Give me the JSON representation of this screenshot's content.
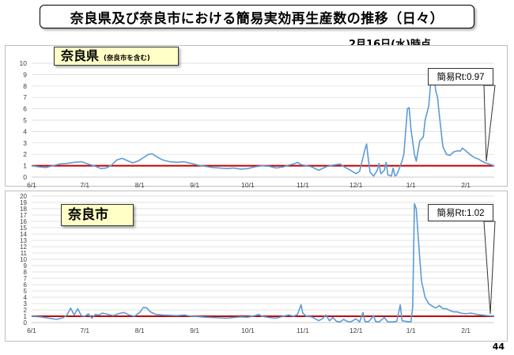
{
  "title": "奈良県及び奈良市における簡易実効再生産数の推移（日々）",
  "as_of": "2月16日(水)時点",
  "page_number": "44",
  "colors": {
    "line": "#5b9bd5",
    "threshold": "#c00000",
    "legend_bg": "#ffffc6",
    "grid": "#d9d9d9"
  },
  "chart_data": [
    {
      "type": "line",
      "legend": {
        "name": "奈良県",
        "note": "(奈良市を含む)"
      },
      "callout": "簡易Rt:0.97",
      "x_start": "6/1",
      "x_tick_labels": [
        "6/1",
        "7/1",
        "8/1",
        "9/1",
        "10/1",
        "11/1",
        "12/1",
        "1/1",
        "2/1"
      ],
      "x_tick_days": [
        0,
        30,
        61,
        92,
        122,
        153,
        183,
        214,
        245
      ],
      "x_max_day": 261,
      "ylim": [
        0,
        10
      ],
      "y_ticks": [
        0,
        1,
        2,
        3,
        4,
        5,
        6,
        7,
        8,
        9,
        10
      ],
      "threshold": 1,
      "points": [
        [
          0,
          1.0
        ],
        [
          4,
          0.9
        ],
        [
          8,
          0.85
        ],
        [
          12,
          1.0
        ],
        [
          16,
          1.15
        ],
        [
          20,
          1.2
        ],
        [
          24,
          1.3
        ],
        [
          28,
          1.35
        ],
        [
          30,
          1.25
        ],
        [
          33,
          1.1
        ],
        [
          36,
          0.95
        ],
        [
          39,
          0.75
        ],
        [
          42,
          0.8
        ],
        [
          45,
          1.05
        ],
        [
          48,
          1.5
        ],
        [
          51,
          1.65
        ],
        [
          54,
          1.45
        ],
        [
          57,
          1.25
        ],
        [
          60,
          1.4
        ],
        [
          63,
          1.7
        ],
        [
          66,
          2.0
        ],
        [
          68,
          2.05
        ],
        [
          71,
          1.75
        ],
        [
          74,
          1.5
        ],
        [
          78,
          1.35
        ],
        [
          82,
          1.3
        ],
        [
          86,
          1.35
        ],
        [
          90,
          1.2
        ],
        [
          94,
          1.05
        ],
        [
          98,
          0.95
        ],
        [
          102,
          0.85
        ],
        [
          106,
          0.8
        ],
        [
          110,
          0.75
        ],
        [
          114,
          0.8
        ],
        [
          118,
          0.7
        ],
        [
          122,
          0.75
        ],
        [
          126,
          0.9
        ],
        [
          130,
          1.0
        ],
        [
          134,
          0.95
        ],
        [
          138,
          0.8
        ],
        [
          142,
          0.9
        ],
        [
          145,
          1.05
        ],
        [
          148,
          1.15
        ],
        [
          150,
          1.3
        ],
        [
          152,
          1.1
        ],
        [
          155,
          1.0
        ],
        [
          158,
          0.9
        ],
        [
          162,
          0.6
        ],
        [
          166,
          0.9
        ],
        [
          170,
          1.05
        ],
        [
          174,
          1.15
        ],
        [
          177,
          0.85
        ],
        [
          180,
          0.6
        ],
        [
          183,
          0.3
        ],
        [
          185,
          0.5
        ],
        [
          186,
          1.1
        ],
        [
          188,
          2.4
        ],
        [
          189,
          2.9
        ],
        [
          190,
          1.5
        ],
        [
          191,
          0.4
        ],
        [
          193,
          0.1
        ],
        [
          195,
          0.6
        ],
        [
          196,
          1.2
        ],
        [
          197,
          0.3
        ],
        [
          199,
          0.6
        ],
        [
          200,
          1.3
        ],
        [
          201,
          0.2
        ],
        [
          203,
          0.1
        ],
        [
          204,
          0.8
        ],
        [
          205,
          0.1
        ],
        [
          206,
          0.2
        ],
        [
          207,
          0.6
        ],
        [
          209,
          1.4
        ],
        [
          210,
          2.0
        ],
        [
          212,
          6.0
        ],
        [
          213,
          6.1
        ],
        [
          214,
          4.2
        ],
        [
          216,
          2.0
        ],
        [
          217,
          1.4
        ],
        [
          219,
          3.2
        ],
        [
          221,
          3.5
        ],
        [
          222,
          5.0
        ],
        [
          224,
          6.2
        ],
        [
          225,
          8.0
        ],
        [
          226,
          9.4
        ],
        [
          227,
          9.0
        ],
        [
          228,
          7.6
        ],
        [
          229,
          7.0
        ],
        [
          230,
          5.5
        ],
        [
          232,
          2.7
        ],
        [
          234,
          2.0
        ],
        [
          236,
          1.9
        ],
        [
          238,
          2.2
        ],
        [
          240,
          2.3
        ],
        [
          242,
          2.3
        ],
        [
          243,
          2.55
        ],
        [
          245,
          2.3
        ],
        [
          248,
          1.9
        ],
        [
          250,
          1.7
        ],
        [
          252,
          1.6
        ],
        [
          254,
          1.4
        ],
        [
          256,
          1.25
        ],
        [
          258,
          1.15
        ],
        [
          260,
          1.05
        ],
        [
          261,
          0.97
        ]
      ]
    },
    {
      "type": "line",
      "legend": {
        "name": "奈良市",
        "note": ""
      },
      "callout": "簡易Rt:1.02",
      "x_start": "6/1",
      "x_tick_labels": [
        "6/1",
        "7/1",
        "8/1",
        "9/1",
        "10/1",
        "11/1",
        "12/1",
        "1/1",
        "2/1"
      ],
      "x_tick_days": [
        0,
        30,
        61,
        92,
        122,
        153,
        183,
        214,
        245
      ],
      "x_max_day": 261,
      "ylim": [
        0,
        20
      ],
      "y_ticks": [
        0,
        1,
        2,
        3,
        4,
        5,
        6,
        7,
        8,
        9,
        10,
        11,
        12,
        13,
        14,
        15,
        16,
        17,
        18,
        19,
        20
      ],
      "threshold": 1,
      "points": [
        [
          0,
          1.0
        ],
        [
          5,
          0.9
        ],
        [
          10,
          0.7
        ],
        [
          14,
          0.5
        ],
        [
          18,
          0.8
        ],
        [
          20,
          1.2
        ],
        [
          22,
          2.3
        ],
        [
          24,
          1.2
        ],
        [
          26,
          2.2
        ],
        [
          28,
          1.1
        ],
        [
          30,
          1.0
        ],
        [
          32,
          1.4
        ],
        [
          34,
          0.7
        ],
        [
          36,
          1.3
        ],
        [
          38,
          1.2
        ],
        [
          40,
          1.5
        ],
        [
          43,
          1.3
        ],
        [
          46,
          1.1
        ],
        [
          49,
          1.4
        ],
        [
          52,
          1.6
        ],
        [
          55,
          1.2
        ],
        [
          58,
          1.0
        ],
        [
          61,
          1.6
        ],
        [
          63,
          2.4
        ],
        [
          65,
          2.3
        ],
        [
          67,
          1.7
        ],
        [
          70,
          1.3
        ],
        [
          74,
          1.2
        ],
        [
          78,
          1.15
        ],
        [
          82,
          1.1
        ],
        [
          86,
          1.2
        ],
        [
          90,
          1.0
        ],
        [
          94,
          0.95
        ],
        [
          98,
          0.85
        ],
        [
          102,
          0.8
        ],
        [
          106,
          0.75
        ],
        [
          110,
          0.7
        ],
        [
          114,
          0.8
        ],
        [
          118,
          0.9
        ],
        [
          122,
          0.85
        ],
        [
          126,
          1.1
        ],
        [
          128,
          1.3
        ],
        [
          130,
          1.0
        ],
        [
          134,
          0.8
        ],
        [
          138,
          0.7
        ],
        [
          142,
          1.0
        ],
        [
          145,
          1.2
        ],
        [
          148,
          1.0
        ],
        [
          150,
          1.3
        ],
        [
          152,
          2.8
        ],
        [
          153,
          1.5
        ],
        [
          155,
          1.0
        ],
        [
          158,
          0.9
        ],
        [
          162,
          0.3
        ],
        [
          164,
          0.6
        ],
        [
          166,
          1.2
        ],
        [
          168,
          0.3
        ],
        [
          170,
          0.8
        ],
        [
          172,
          0.2
        ],
        [
          174,
          0.1
        ],
        [
          176,
          0.5
        ],
        [
          178,
          0.2
        ],
        [
          180,
          0.1
        ],
        [
          183,
          0.6
        ],
        [
          185,
          0.1
        ],
        [
          187,
          1.6
        ],
        [
          188,
          0.2
        ],
        [
          190,
          0.1
        ],
        [
          193,
          1.1
        ],
        [
          194,
          0.2
        ],
        [
          196,
          0.1
        ],
        [
          199,
          0.8
        ],
        [
          201,
          0.1
        ],
        [
          204,
          0.1
        ],
        [
          206,
          0.2
        ],
        [
          208,
          2.8
        ],
        [
          209,
          0.3
        ],
        [
          211,
          0.2
        ],
        [
          214,
          0.1
        ],
        [
          215,
          2.5
        ],
        [
          216,
          18.8
        ],
        [
          217,
          18.0
        ],
        [
          218,
          14.0
        ],
        [
          219,
          10.0
        ],
        [
          220,
          6.5
        ],
        [
          222,
          4.0
        ],
        [
          224,
          3.0
        ],
        [
          226,
          2.6
        ],
        [
          228,
          2.3
        ],
        [
          230,
          2.7
        ],
        [
          232,
          2.2
        ],
        [
          234,
          2.2
        ],
        [
          236,
          1.9
        ],
        [
          238,
          1.7
        ],
        [
          240,
          1.7
        ],
        [
          242,
          1.5
        ],
        [
          245,
          1.4
        ],
        [
          248,
          1.5
        ],
        [
          251,
          1.3
        ],
        [
          254,
          1.2
        ],
        [
          257,
          1.1
        ],
        [
          261,
          1.02
        ]
      ]
    }
  ]
}
